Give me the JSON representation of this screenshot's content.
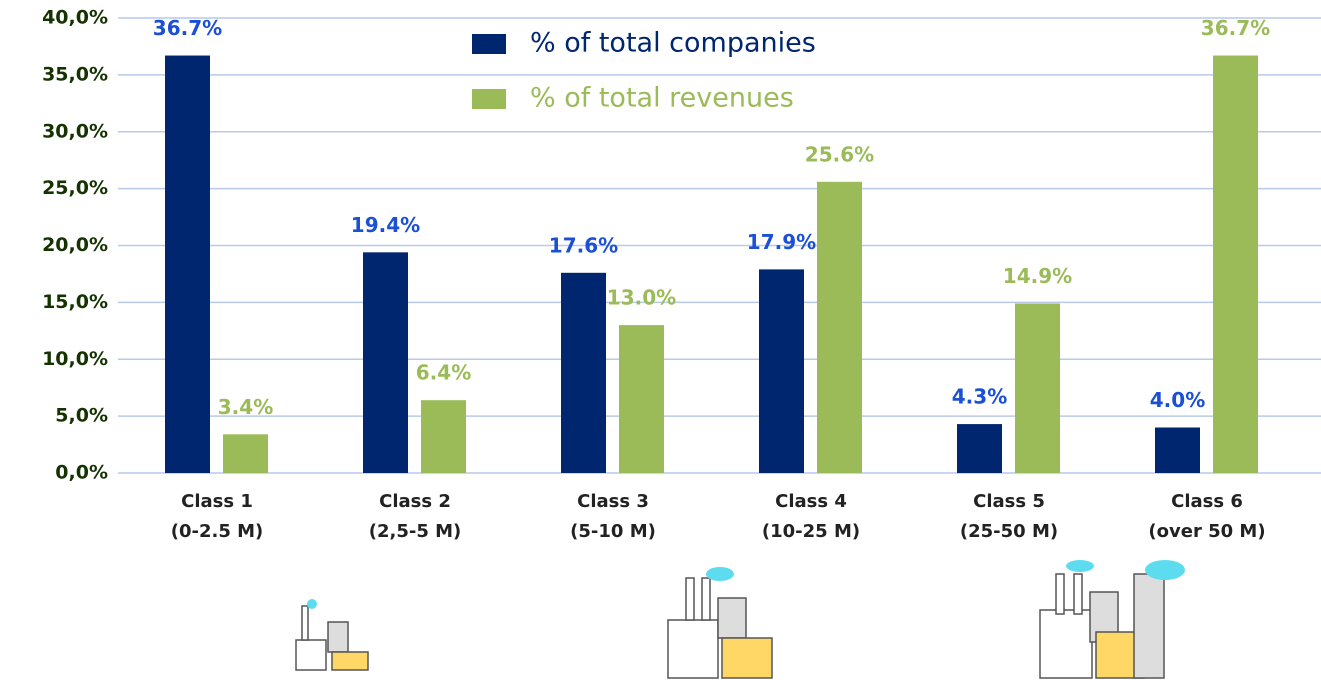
{
  "chart_data": {
    "type": "bar",
    "categories": [
      [
        "Class 1",
        "(0-2.5 M)"
      ],
      [
        "Class 2",
        "(2,5-5 M)"
      ],
      [
        "Class 3",
        "(5-10 M)"
      ],
      [
        "Class 4",
        "(10-25 M)"
      ],
      [
        "Class 5",
        "(25-50 M)"
      ],
      [
        "Class 6",
        "(over 50 M)"
      ]
    ],
    "series": [
      {
        "name": "% of total companies",
        "color": "#00266f",
        "label_color": "#1a4fd6",
        "values": [
          36.7,
          19.4,
          17.6,
          17.9,
          4.3,
          4.0
        ],
        "value_labels": [
          "36.7%",
          "19.4%",
          "17.6%",
          "17.9%",
          "4.3%",
          "4.0%"
        ]
      },
      {
        "name": "% of total revenues",
        "color": "#9bbb59",
        "label_color": "#9bbb59",
        "values": [
          3.4,
          6.4,
          13.0,
          25.6,
          14.9,
          36.7
        ],
        "value_labels": [
          "3.4%",
          "6.4%",
          "13.0%",
          "25.6%",
          "14.9%",
          "36.7%"
        ]
      }
    ],
    "ylim": [
      0,
      40
    ],
    "yticks": [
      {
        "value": 0,
        "label": "0,0%"
      },
      {
        "value": 5,
        "label": "5,0%"
      },
      {
        "value": 10,
        "label": "10,0%"
      },
      {
        "value": 15,
        "label": "15,0%"
      },
      {
        "value": 20,
        "label": "20,0%"
      },
      {
        "value": 25,
        "label": "25,0%"
      },
      {
        "value": 30,
        "label": "30,0%"
      },
      {
        "value": 35,
        "label": "35,0%"
      },
      {
        "value": 40,
        "label": "40,0%"
      }
    ],
    "grid": true,
    "legend": "top"
  }
}
